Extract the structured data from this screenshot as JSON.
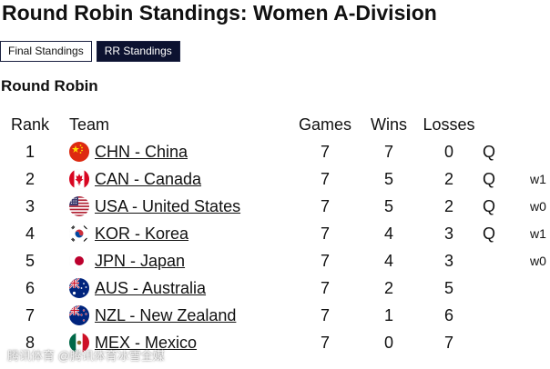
{
  "page": {
    "title": "Round Robin Standings: Women A-Division",
    "tabs": [
      {
        "label": "Final Standings",
        "active": false
      },
      {
        "label": "RR Standings",
        "active": true
      }
    ],
    "section_title": "Round Robin"
  },
  "table": {
    "headers": {
      "rank": "Rank",
      "team": "Team",
      "games": "Games",
      "wins": "Wins",
      "losses": "Losses"
    },
    "rows": [
      {
        "rank": "1",
        "team": "CHN - China",
        "flag": "china-flag-icon",
        "games": "7",
        "wins": "7",
        "losses": "0",
        "qual": "Q",
        "tiebreak": ""
      },
      {
        "rank": "2",
        "team": "CAN - Canada",
        "flag": "canada-flag-icon",
        "games": "7",
        "wins": "5",
        "losses": "2",
        "qual": "Q",
        "tiebreak": "w1"
      },
      {
        "rank": "3",
        "team": "USA - United States",
        "flag": "usa-flag-icon",
        "games": "7",
        "wins": "5",
        "losses": "2",
        "qual": "Q",
        "tiebreak": "w0"
      },
      {
        "rank": "4",
        "team": "KOR - Korea",
        "flag": "korea-flag-icon",
        "games": "7",
        "wins": "4",
        "losses": "3",
        "qual": "Q",
        "tiebreak": "w1"
      },
      {
        "rank": "5",
        "team": "JPN - Japan",
        "flag": "japan-flag-icon",
        "games": "7",
        "wins": "4",
        "losses": "3",
        "qual": "",
        "tiebreak": "w0"
      },
      {
        "rank": "6",
        "team": "AUS - Australia",
        "flag": "australia-flag-icon",
        "games": "7",
        "wins": "2",
        "losses": "5",
        "qual": "",
        "tiebreak": ""
      },
      {
        "rank": "7",
        "team": "NZL - New Zealand",
        "flag": "new-zealand-flag-icon",
        "games": "7",
        "wins": "1",
        "losses": "6",
        "qual": "",
        "tiebreak": ""
      },
      {
        "rank": "8",
        "team": "MEX - Mexico",
        "flag": "mexico-flag-icon",
        "games": "7",
        "wins": "0",
        "losses": "7",
        "qual": "",
        "tiebreak": ""
      }
    ]
  },
  "watermark": "腾讯体育 @腾讯体育冰雪全媒",
  "colors": {
    "tab_active_bg": "#0c1230",
    "text": "#111111"
  }
}
